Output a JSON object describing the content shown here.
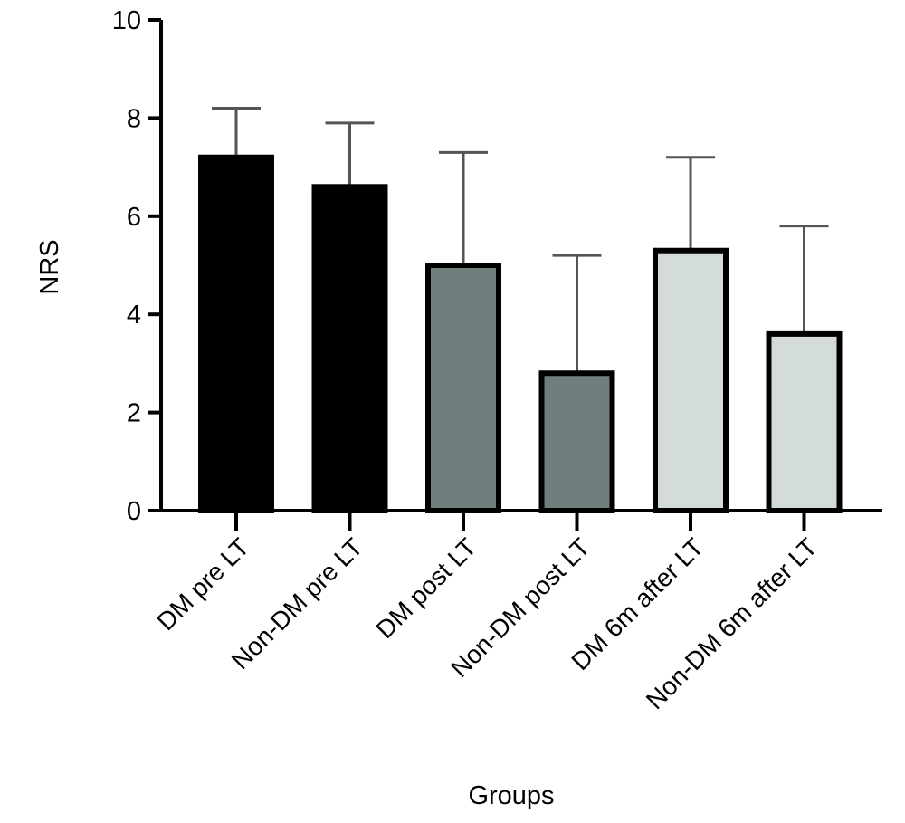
{
  "chart_data": {
    "type": "bar",
    "title": "",
    "xlabel": "Groups",
    "ylabel": "NRS",
    "ylim": [
      0,
      10
    ],
    "yticks": [
      0,
      2,
      4,
      6,
      8,
      10
    ],
    "grid": false,
    "categories": [
      "DM pre LT",
      "Non-DM pre LT",
      "DM post LT",
      "Non-DM post LT",
      "DM 6m after LT",
      "Non-DM 6m after LT"
    ],
    "values": [
      7.2,
      6.6,
      5.0,
      2.8,
      5.3,
      3.6
    ],
    "error_upper": [
      8.2,
      7.9,
      7.3,
      5.2,
      7.2,
      5.8
    ],
    "colors": [
      "#000000",
      "#000000",
      "#6f7f7d",
      "#6f7f7d",
      "#d3dcdb",
      "#d3dcdb"
    ]
  }
}
